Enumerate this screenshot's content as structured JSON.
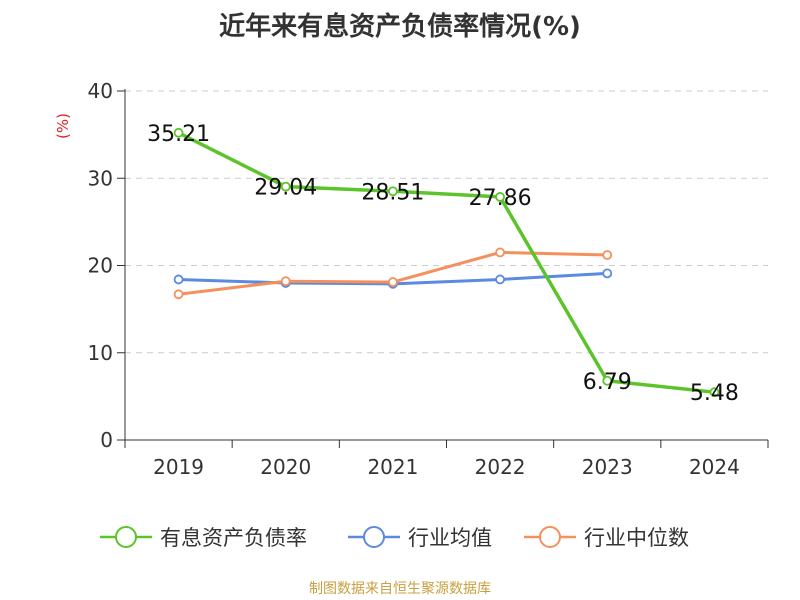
{
  "chart_data": {
    "type": "line",
    "title": "近年来有息资产负债率情况(%)",
    "ylabel": "(%)",
    "xlabel": "",
    "categories": [
      "2019",
      "2020",
      "2021",
      "2022",
      "2023",
      "2024"
    ],
    "ylim": [
      0,
      40
    ],
    "yticks": [
      "0",
      "10",
      "20",
      "30",
      "40"
    ],
    "grid": true,
    "legend_position": "bottom",
    "series": [
      {
        "name": "有息资产负债率",
        "color": "#5cc42a",
        "values": [
          35.21,
          29.04,
          28.51,
          27.86,
          6.79,
          5.48
        ],
        "labels": [
          "35.21",
          "29.04",
          "28.51",
          "27.86",
          "6.79",
          "5.48"
        ]
      },
      {
        "name": "行业均值",
        "color": "#5b8ae0",
        "values": [
          18.4,
          18.0,
          17.9,
          18.4,
          19.1,
          null
        ]
      },
      {
        "name": "行业中位数",
        "color": "#f5905c",
        "values": [
          16.7,
          18.2,
          18.1,
          21.5,
          21.2,
          null
        ]
      }
    ],
    "source": "制图数据来自恒生聚源数据库"
  }
}
